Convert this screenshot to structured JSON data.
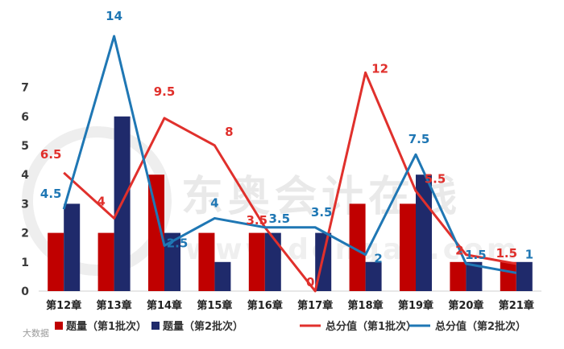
{
  "chart_data": {
    "type": "bar",
    "categories": [
      "第12章",
      "第13章",
      "第14章",
      "第15章",
      "第16章",
      "第17章",
      "第18章",
      "第19章",
      "第20章",
      "第21章"
    ],
    "y_ticks": [
      0,
      1,
      2,
      3,
      4,
      5,
      6,
      7
    ],
    "ylim": [
      0,
      8
    ],
    "line_ylim": [
      0,
      14
    ],
    "bar_series": [
      {
        "name": "题量（第1批次）",
        "color": "#c00000",
        "values": [
          2,
          2,
          4,
          2,
          2,
          0,
          3,
          3,
          1,
          1
        ]
      },
      {
        "name": "题量（第2批次）",
        "color": "#1f2a6b",
        "values": [
          3,
          6,
          2,
          1,
          2,
          2,
          1,
          4,
          1,
          1
        ]
      }
    ],
    "line_series": [
      {
        "name": "总分值（第1批次）",
        "color": "#e0302c",
        "values": [
          6.5,
          4,
          9.5,
          8,
          3.5,
          0,
          12,
          5.5,
          2,
          1.5
        ],
        "labels": [
          "6.5",
          "4",
          "9.5",
          "8",
          "3.5",
          "0",
          "12",
          "5.5",
          "2",
          "1.5"
        ]
      },
      {
        "name": "总分值（第2批次）",
        "color": "#1f77b4",
        "values": [
          4.5,
          14,
          2.5,
          4,
          3.5,
          3.5,
          2,
          7.5,
          1.5,
          1
        ],
        "labels": [
          "4.5",
          "14",
          "2.5",
          "4",
          "3.5",
          "3.5",
          "2",
          "7.5",
          "1.5",
          "1"
        ]
      }
    ],
    "legend_position": "bottom"
  },
  "watermark": {
    "text": "东奥会计在线",
    "url_text": "www.dongao.com",
    "credit_text": "大数据"
  }
}
